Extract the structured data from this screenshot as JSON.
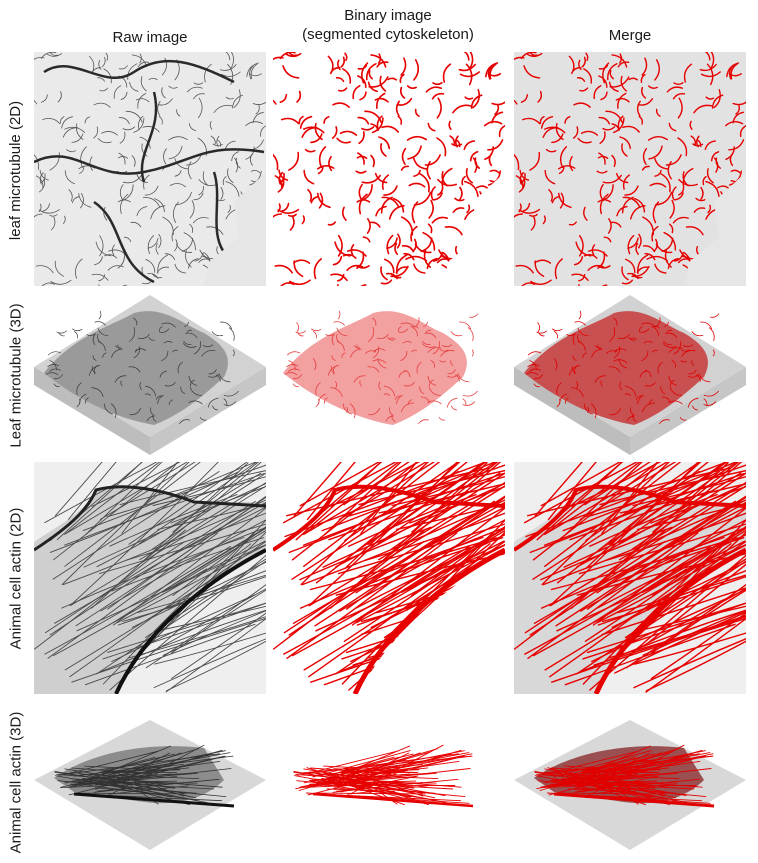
{
  "column_headers": {
    "raw": "Raw image",
    "binary_line1": "Binary image",
    "binary_line2": "(segmented cytoskeleton)",
    "merge": "Merge"
  },
  "row_labels": {
    "row1": "leaf microtubule (2D)",
    "row2": "Leaf microtubule (3D)",
    "row3": "Animal cell actin (2D)",
    "row4": "Animal cell actin (3D)"
  },
  "colors": {
    "segmentation": "#e60000",
    "raw_filament": "#333333",
    "raw_background": "#eeeeee",
    "volume_box": "#c8c8c8"
  }
}
